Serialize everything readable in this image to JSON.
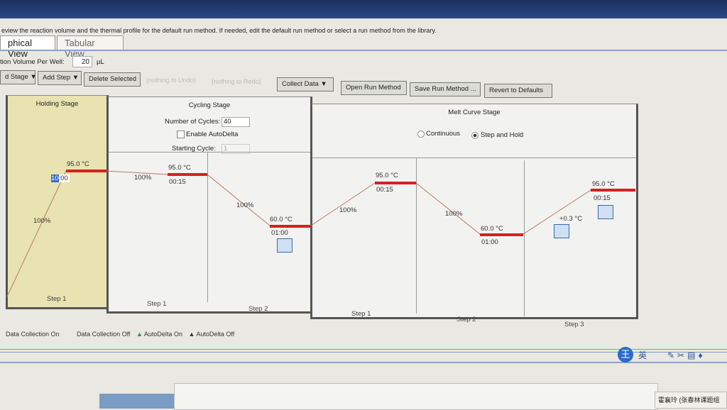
{
  "instruction": "eview the reaction volume and the thermal profile for the default run method. If needed, edit the default run method or select a run method from the library.",
  "tabs": [
    {
      "label": "phical View",
      "active": true
    },
    {
      "label": "Tabular View",
      "active": false
    }
  ],
  "volume": {
    "label": "tion Volume Per Well:",
    "value": "20",
    "unit": "µL"
  },
  "toolbar": {
    "add_stage": "d Stage ▼",
    "add_step": "Add Step ▼",
    "delete": "Delete Selected",
    "undo": "(nothing to Undo)",
    "redo": "(nothing to Redo)",
    "collect": "Collect Data ▼",
    "open": "Open Run Method",
    "save": "Save Run Method ...",
    "revert": "Revert to Defaults"
  },
  "stages": {
    "holding": {
      "title": "Holding Stage",
      "temp": "95.0 °C",
      "time": "10:00",
      "time_sel": "10",
      "ramp": "100%",
      "step": "Step 1"
    },
    "cycling": {
      "title": "Cycling Stage",
      "cycles_label": "Number of Cycles:",
      "cycles": "40",
      "autodelta": "Enable AutoDelta",
      "start_label": "Starting Cycle:",
      "start": "1",
      "steps": [
        {
          "temp": "95.0 °C",
          "time": "00:15",
          "ramp": "100%",
          "step": "Step 1"
        },
        {
          "temp": "60.0 °C",
          "time": "01:00",
          "ramp": "100%",
          "step": "Step 2"
        }
      ]
    },
    "melt": {
      "title": "Melt Curve Stage",
      "continuous": "Continuous",
      "stephold": "Step and Hold",
      "steps": [
        {
          "temp": "95.0 °C",
          "time": "00:15",
          "ramp": "100%",
          "step": "Step 1"
        },
        {
          "temp": "60.0 °C",
          "time": "01:00",
          "ramp": "100%",
          "step": "Step 2"
        },
        {
          "temp": "95.0 °C",
          "time": "00:15",
          "ramp": "+0.3 °C",
          "step": "Step 3"
        }
      ]
    }
  },
  "legend": {
    "on": "Data Collection On",
    "off": "Data Collection Off",
    "ad_on": "AutoDelta On",
    "ad_off": "AutoDelta Off"
  },
  "tray": {
    "ime": "英",
    "user": "霍襄玲 (张春林课题组"
  },
  "colors": {
    "hold_line": "#d42020",
    "hold_bg": "#e8e3b0"
  }
}
